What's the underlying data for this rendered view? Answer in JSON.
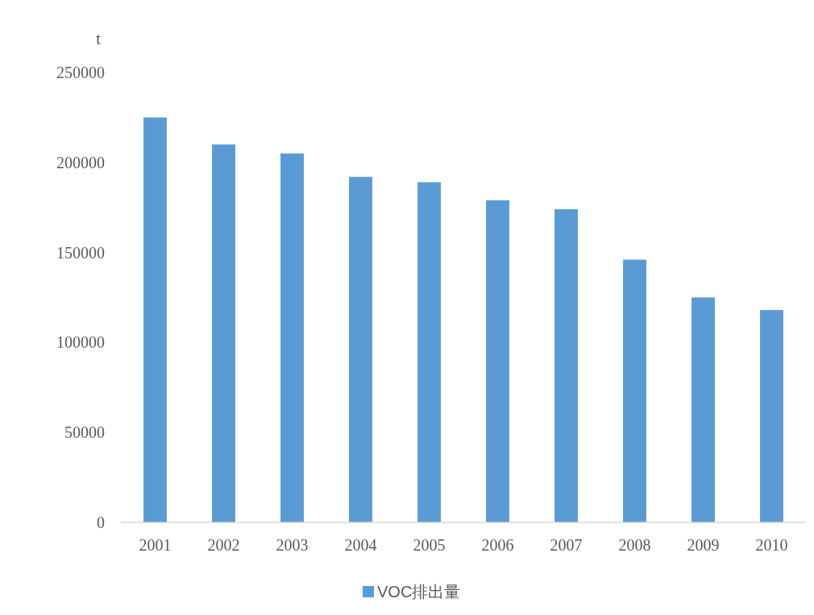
{
  "chart_data": {
    "type": "bar",
    "ylabel": "t",
    "categories": [
      "2001",
      "2002",
      "2003",
      "2004",
      "2005",
      "2006",
      "2007",
      "2008",
      "2009",
      "2010"
    ],
    "series": [
      {
        "name": "VOC排出量",
        "color": "#5b9bd5",
        "values": [
          225000,
          210000,
          205000,
          192000,
          189000,
          179000,
          174000,
          146000,
          125000,
          118000
        ]
      }
    ],
    "ylim": [
      0,
      250000
    ],
    "yticks": [
      0,
      50000,
      100000,
      150000,
      200000,
      250000
    ],
    "grid": false,
    "legend": "bottom"
  }
}
